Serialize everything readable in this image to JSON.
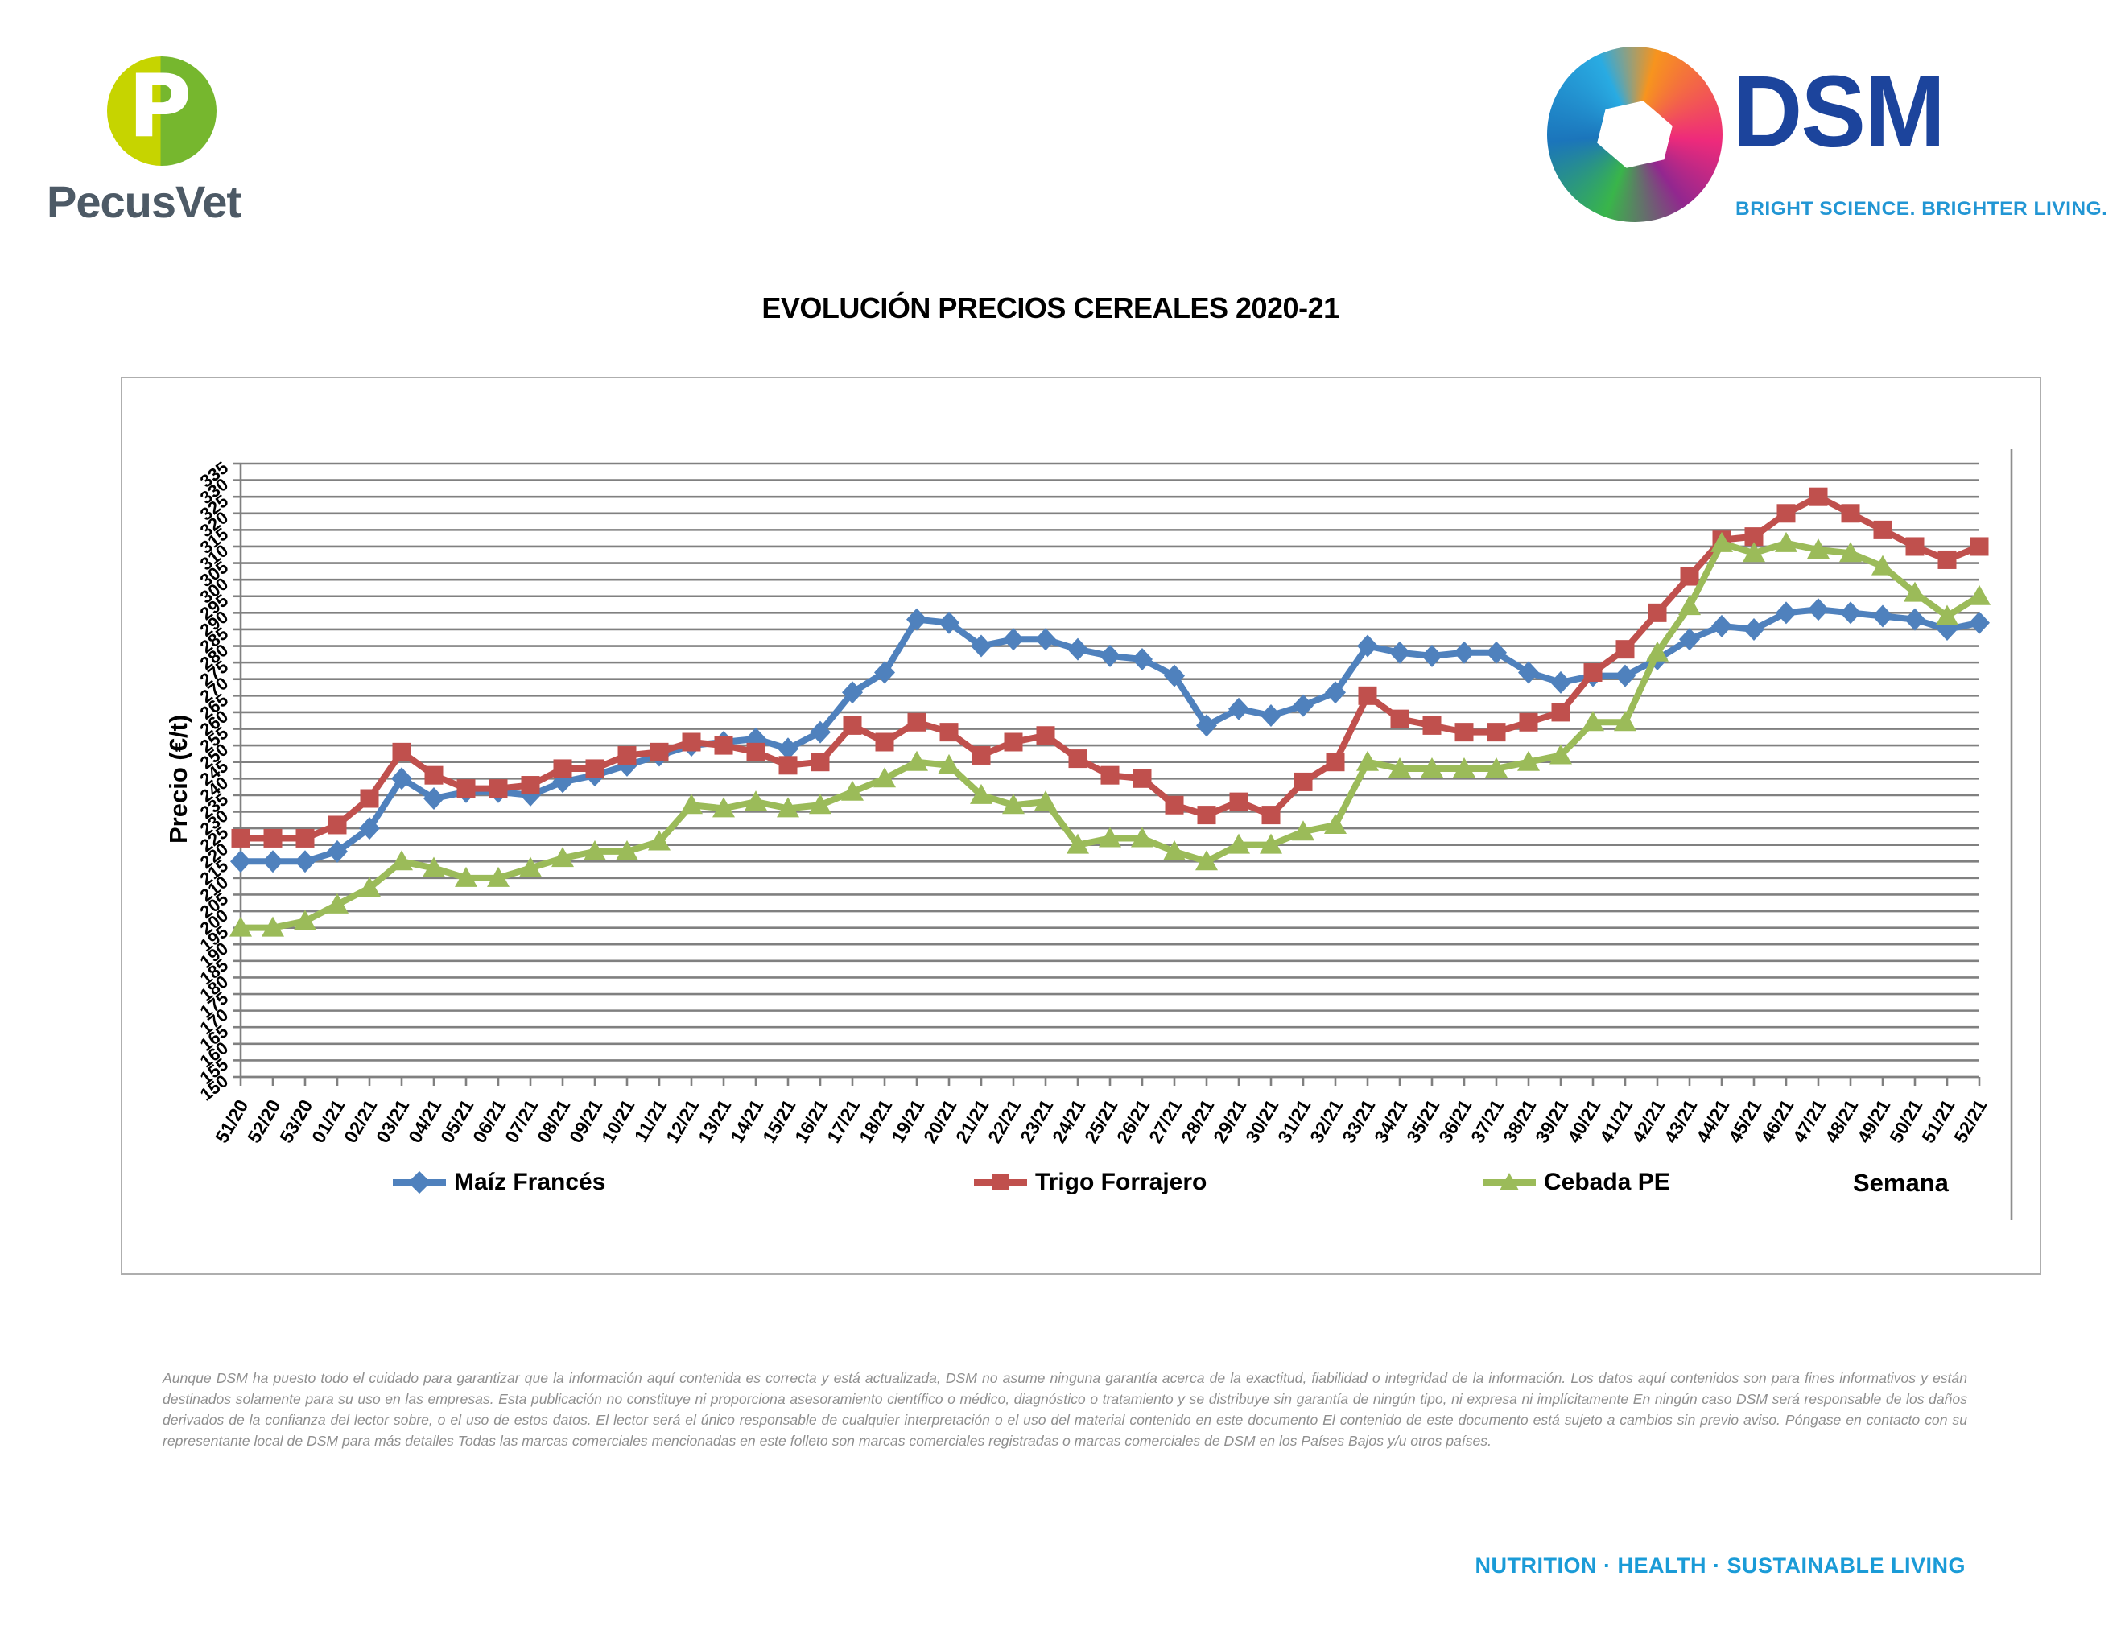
{
  "header": {
    "pecusvet_initial": "P",
    "pecusvet_name": "PecusVet",
    "dsm_name": "DSM",
    "dsm_tagline": "BRIGHT SCIENCE. BRIGHTER LIVING."
  },
  "title": "EVOLUCIÓN PRECIOS CEREALES 2020-21",
  "chart_data": {
    "type": "line",
    "title": "EVOLUCIÓN PRECIOS CEREALES 2020-21",
    "ylabel": "Precio (€/t)",
    "xlabel": "Semana",
    "ylim": [
      150,
      335
    ],
    "ytick_step": 5,
    "grid": true,
    "grid_color": "#808080",
    "axis_color": "#808080",
    "legend_position": "bottom",
    "categories": [
      "51/20",
      "52/20",
      "53/20",
      "01/21",
      "02/21",
      "03/21",
      "04/21",
      "05/21",
      "06/21",
      "07/21",
      "08/21",
      "09/21",
      "10/21",
      "11/21",
      "12/21",
      "13/21",
      "14/21",
      "15/21",
      "16/21",
      "17/21",
      "18/21",
      "19/21",
      "20/21",
      "21/21",
      "22/21",
      "23/21",
      "24/21",
      "25/21",
      "26/21",
      "27/21",
      "28/21",
      "29/21",
      "30/21",
      "31/21",
      "32/21",
      "33/21",
      "34/21",
      "35/21",
      "36/21",
      "37/21",
      "38/21",
      "39/21",
      "40/21",
      "41/21",
      "42/21",
      "43/21",
      "44/21",
      "45/21",
      "46/21",
      "47/21",
      "48/21",
      "49/21",
      "50/21",
      "51/21",
      "52/21"
    ],
    "series": [
      {
        "name": "Maíz Francés",
        "color": "#4F81BD",
        "marker": "diamond",
        "values": [
          215,
          215,
          215,
          218,
          225,
          240,
          234,
          236,
          236,
          235,
          239,
          241,
          244,
          247,
          250,
          251,
          252,
          249,
          254,
          266,
          272,
          288,
          287,
          280,
          282,
          282,
          279,
          277,
          276,
          271,
          256,
          261,
          259,
          262,
          266,
          280,
          278,
          277,
          278,
          278,
          272,
          269,
          271,
          271,
          276,
          282,
          286,
          285,
          290,
          291,
          290,
          289,
          288,
          285,
          287
        ]
      },
      {
        "name": "Trigo Forrajero",
        "color": "#C0504D",
        "marker": "square",
        "values": [
          222,
          222,
          222,
          226,
          234,
          248,
          241,
          237,
          237,
          238,
          243,
          243,
          247,
          248,
          251,
          250,
          248,
          244,
          245,
          256,
          251,
          257,
          254,
          247,
          251,
          253,
          246,
          241,
          240,
          232,
          229,
          233,
          229,
          239,
          245,
          265,
          258,
          256,
          254,
          254,
          257,
          260,
          272,
          279,
          290,
          301,
          312,
          313,
          320,
          325,
          320,
          315,
          310,
          306,
          310
        ]
      },
      {
        "name": "Cebada PE",
        "color": "#9BBB59",
        "marker": "triangle",
        "values": [
          195,
          195,
          197,
          202,
          207,
          215,
          213,
          210,
          210,
          213,
          216,
          218,
          218,
          221,
          232,
          231,
          233,
          231,
          232,
          236,
          240,
          245,
          244,
          235,
          232,
          233,
          220,
          222,
          222,
          218,
          215,
          220,
          220,
          224,
          226,
          245,
          243,
          243,
          243,
          243,
          245,
          247,
          257,
          257,
          278,
          292,
          311,
          308,
          311,
          309,
          308,
          304,
          296,
          289,
          295
        ]
      }
    ]
  },
  "footer": {
    "disclaimer": "Aunque DSM ha puesto todo el cuidado para garantizar que la información aquí contenida es correcta y está actualizada, DSM no asume ninguna garantía acerca de la exactitud, fiabilidad o integridad de la información. Los datos aquí contenidos son para fines informativos y están destinados solamente para su uso en las empresas. Esta publicación no constituye ni proporciona asesoramiento científico o médico, diagnóstico o tratamiento y se distribuye sin garantía de ningún tipo, ni expresa ni implícitamente En ningún caso DSM será responsable de los daños derivados de la confianza del lector sobre, o el uso de estos datos. El lector será el único responsable de cualquier interpretación o el uso del material contenido en este documento El contenido de este documento está sujeto a cambios sin previo aviso. Póngase en contacto con su representante local de DSM para más detalles Todas las marcas comerciales mencionadas en este folleto son marcas comerciales registradas o marcas comerciales de DSM en los Países Bajos y/u otros países.",
    "tagline": "NUTRITION · HEALTH · SUSTAINABLE LIVING"
  }
}
